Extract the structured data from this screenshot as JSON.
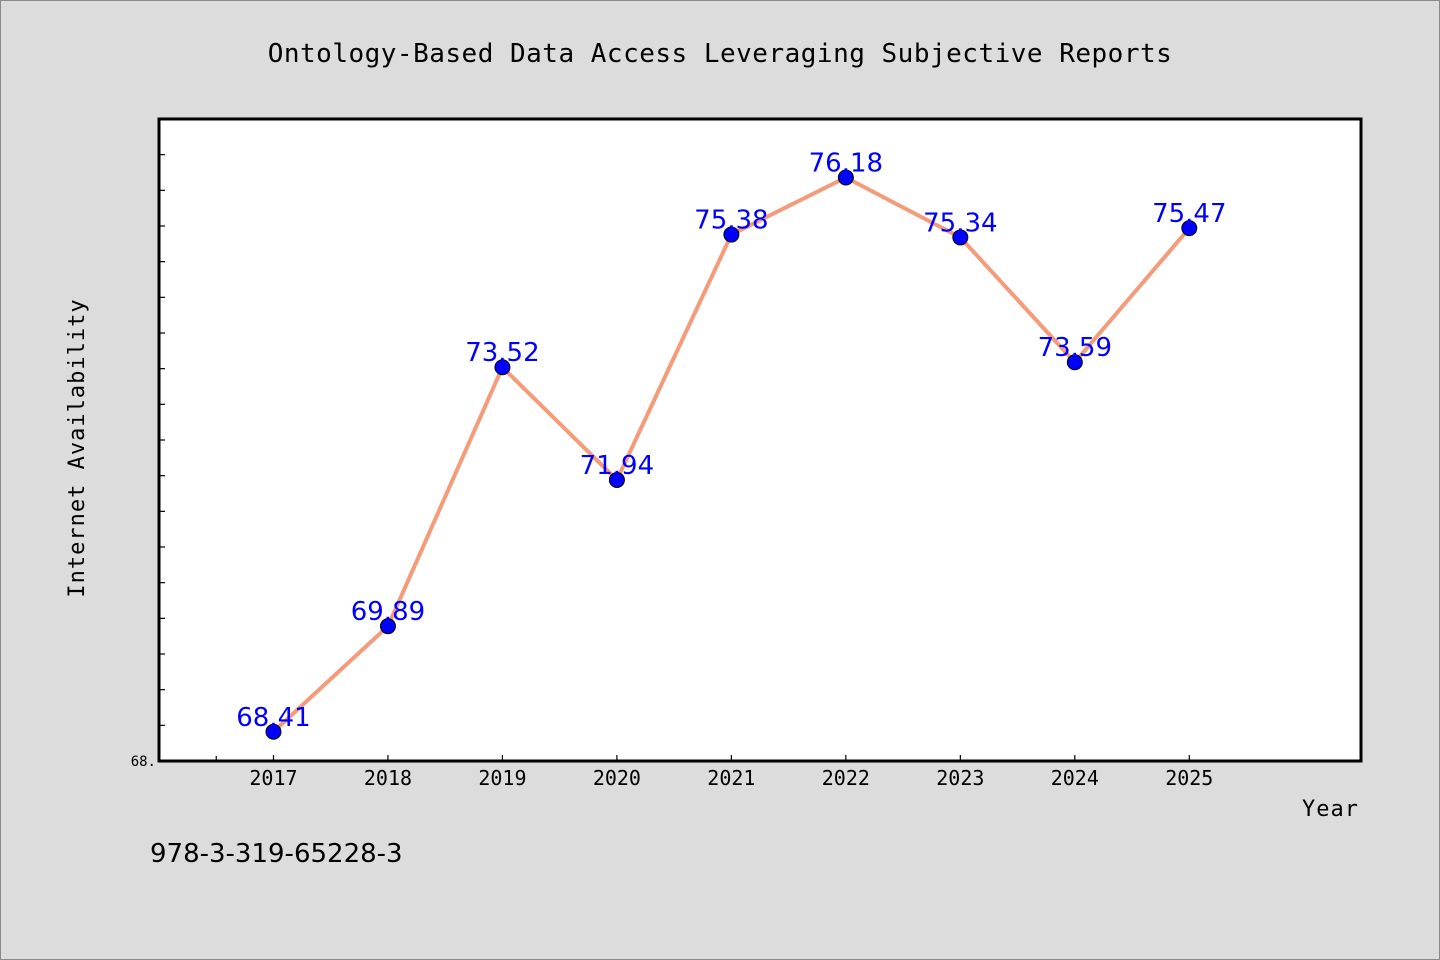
{
  "chart_data": {
    "type": "line",
    "title": "Ontology-Based Data Access Leveraging Subjective Reports",
    "xlabel": "Year",
    "ylabel": "Internet Availability",
    "x": [
      "2017",
      "2018",
      "2019",
      "2020",
      "2021",
      "2022",
      "2023",
      "2024",
      "2025"
    ],
    "series": [
      {
        "values": [
          68.41,
          69.89,
          73.52,
          71.94,
          75.38,
          76.18,
          75.34,
          73.59,
          75.47
        ]
      }
    ],
    "xlim": [
      2016.0,
      2026.5
    ],
    "ylim": [
      68.0,
      77.0
    ],
    "ytick_labels": [
      "68."
    ],
    "ytick_step": 0.5,
    "grid": false,
    "line_color": "#f59b7a",
    "marker_color": "#0000ff",
    "label_color": "#0000ff",
    "plot_background": "#ffffff",
    "page_background": "#dcdcdc"
  },
  "footer_text": "978-3-319-65228-3"
}
